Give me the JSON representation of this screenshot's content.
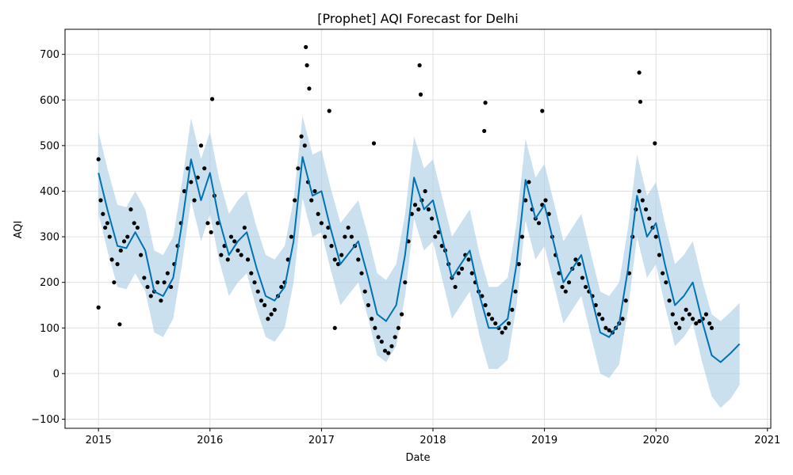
{
  "chart_data": {
    "type": "scatter",
    "title": "[Prophet] AQI Forecast for Delhi",
    "xlabel": "Date",
    "ylabel": "AQI",
    "xlim": [
      2014.7,
      2021.03
    ],
    "ylim": [
      -120,
      755
    ],
    "x_ticks": [
      2015,
      2016,
      2017,
      2018,
      2019,
      2020,
      2021
    ],
    "x_tick_labels": [
      "2015",
      "2016",
      "2017",
      "2018",
      "2019",
      "2020",
      "2021"
    ],
    "y_ticks": [
      -100,
      0,
      100,
      200,
      300,
      400,
      500,
      600,
      700
    ],
    "y_tick_labels": [
      "−100",
      "0",
      "100",
      "200",
      "300",
      "400",
      "500",
      "600",
      "700"
    ],
    "grid": true,
    "colors": {
      "observed": "#000000",
      "forecast": "#0072B2",
      "interval": "#A6CBE3"
    },
    "series": [
      {
        "role": "forecast",
        "x": [
          2015.0,
          2015.08,
          2015.17,
          2015.25,
          2015.33,
          2015.42,
          2015.5,
          2015.58,
          2015.67,
          2015.75,
          2015.83,
          2015.92,
          2016.0,
          2016.08,
          2016.17,
          2016.25,
          2016.33,
          2016.42,
          2016.5,
          2016.58,
          2016.67,
          2016.75,
          2016.83,
          2016.92,
          2017.0,
          2017.08,
          2017.17,
          2017.25,
          2017.33,
          2017.42,
          2017.5,
          2017.58,
          2017.67,
          2017.75,
          2017.83,
          2017.92,
          2018.0,
          2018.08,
          2018.17,
          2018.25,
          2018.33,
          2018.42,
          2018.5,
          2018.58,
          2018.67,
          2018.75,
          2018.83,
          2018.92,
          2019.0,
          2019.08,
          2019.17,
          2019.25,
          2019.33,
          2019.42,
          2019.5,
          2019.58,
          2019.67,
          2019.75,
          2019.83,
          2019.92,
          2020.0,
          2020.08,
          2020.17,
          2020.25,
          2020.33,
          2020.42,
          2020.5,
          2020.58,
          2020.67,
          2020.75
        ],
        "y": [
          440,
          360,
          280,
          275,
          310,
          270,
          180,
          170,
          210,
          330,
          470,
          380,
          440,
          340,
          260,
          290,
          310,
          230,
          170,
          160,
          190,
          290,
          475,
          390,
          400,
          320,
          240,
          265,
          290,
          210,
          130,
          115,
          150,
          260,
          430,
          360,
          380,
          300,
          210,
          240,
          270,
          170,
          100,
          100,
          120,
          240,
          425,
          340,
          370,
          290,
          200,
          230,
          260,
          170,
          90,
          80,
          110,
          230,
          390,
          300,
          330,
          240,
          150,
          170,
          200,
          110,
          40,
          25,
          45,
          65
        ]
      },
      {
        "role": "interval",
        "x": [
          2015.0,
          2015.08,
          2015.17,
          2015.25,
          2015.33,
          2015.42,
          2015.5,
          2015.58,
          2015.67,
          2015.75,
          2015.83,
          2015.92,
          2016.0,
          2016.08,
          2016.17,
          2016.25,
          2016.33,
          2016.42,
          2016.5,
          2016.58,
          2016.67,
          2016.75,
          2016.83,
          2016.92,
          2017.0,
          2017.08,
          2017.17,
          2017.25,
          2017.33,
          2017.42,
          2017.5,
          2017.58,
          2017.67,
          2017.75,
          2017.83,
          2017.92,
          2018.0,
          2018.08,
          2018.17,
          2018.25,
          2018.33,
          2018.42,
          2018.5,
          2018.58,
          2018.67,
          2018.75,
          2018.83,
          2018.92,
          2019.0,
          2019.08,
          2019.17,
          2019.25,
          2019.33,
          2019.42,
          2019.5,
          2019.58,
          2019.67,
          2019.75,
          2019.83,
          2019.92,
          2020.0,
          2020.08,
          2020.17,
          2020.25,
          2020.33,
          2020.42,
          2020.5,
          2020.58,
          2020.67,
          2020.75
        ],
        "upper": [
          530,
          450,
          370,
          365,
          400,
          360,
          270,
          260,
          300,
          420,
          560,
          470,
          530,
          430,
          350,
          380,
          400,
          320,
          260,
          250,
          280,
          380,
          565,
          480,
          490,
          410,
          330,
          355,
          380,
          300,
          220,
          205,
          240,
          350,
          520,
          450,
          470,
          390,
          300,
          330,
          360,
          260,
          190,
          190,
          210,
          330,
          515,
          430,
          460,
          380,
          290,
          320,
          350,
          260,
          180,
          170,
          200,
          320,
          480,
          390,
          420,
          330,
          240,
          260,
          290,
          200,
          130,
          115,
          135,
          155
        ],
        "lower": [
          350,
          270,
          190,
          185,
          220,
          180,
          90,
          80,
          120,
          240,
          380,
          290,
          350,
          250,
          170,
          200,
          220,
          140,
          80,
          70,
          100,
          200,
          385,
          300,
          310,
          230,
          150,
          175,
          200,
          120,
          40,
          25,
          60,
          170,
          340,
          270,
          290,
          210,
          120,
          150,
          180,
          80,
          10,
          10,
          30,
          150,
          335,
          250,
          280,
          200,
          110,
          140,
          170,
          80,
          0,
          -10,
          20,
          140,
          300,
          210,
          240,
          150,
          60,
          80,
          110,
          20,
          -50,
          -75,
          -55,
          -25
        ]
      },
      {
        "role": "observed",
        "x": [
          2015.0,
          2015.02,
          2015.04,
          2015.06,
          2015.08,
          2015.1,
          2015.12,
          2015.14,
          2015.17,
          2015.2,
          2015.23,
          2015.26,
          2015.29,
          2015.32,
          2015.35,
          2015.38,
          2015.41,
          2015.44,
          2015.47,
          2015.5,
          2015.53,
          2015.56,
          2015.59,
          2015.62,
          2015.65,
          2015.68,
          2015.71,
          2015.74,
          2015.77,
          2015.8,
          2015.83,
          2015.86,
          2015.89,
          2015.92,
          2015.95,
          2015.98,
          2016.01,
          2016.04,
          2016.07,
          2016.1,
          2016.13,
          2016.16,
          2016.19,
          2016.22,
          2016.25,
          2016.28,
          2016.31,
          2016.34,
          2016.37,
          2016.4,
          2016.43,
          2016.46,
          2016.49,
          2016.52,
          2016.55,
          2016.58,
          2016.61,
          2016.64,
          2016.67,
          2016.7,
          2016.73,
          2016.76,
          2016.79,
          2016.82,
          2016.85,
          2016.88,
          2016.91,
          2016.94,
          2016.97,
          2017.0,
          2017.03,
          2017.06,
          2017.09,
          2017.12,
          2017.15,
          2017.18,
          2017.21,
          2017.24,
          2017.27,
          2017.3,
          2017.33,
          2017.36,
          2017.39,
          2017.42,
          2017.45,
          2017.48,
          2017.51,
          2017.54,
          2017.57,
          2017.6,
          2017.63,
          2017.66,
          2017.69,
          2017.72,
          2017.75,
          2017.78,
          2017.81,
          2017.84,
          2017.87,
          2017.9,
          2017.93,
          2017.96,
          2017.99,
          2018.02,
          2018.05,
          2018.08,
          2018.11,
          2018.14,
          2018.17,
          2018.2,
          2018.23,
          2018.26,
          2018.29,
          2018.32,
          2018.35,
          2018.38,
          2018.41,
          2018.44,
          2018.47,
          2018.5,
          2018.53,
          2018.56,
          2018.59,
          2018.62,
          2018.65,
          2018.68,
          2018.71,
          2018.74,
          2018.77,
          2018.8,
          2018.83,
          2018.86,
          2018.89,
          2018.92,
          2018.95,
          2018.98,
          2019.01,
          2019.04,
          2019.07,
          2019.1,
          2019.13,
          2019.16,
          2019.19,
          2019.22,
          2019.25,
          2019.28,
          2019.31,
          2019.34,
          2019.37,
          2019.4,
          2019.43,
          2019.46,
          2019.49,
          2019.52,
          2019.55,
          2019.58,
          2019.61,
          2019.64,
          2019.67,
          2019.7,
          2019.73,
          2019.76,
          2019.79,
          2019.82,
          2019.85,
          2019.88,
          2019.91,
          2019.94,
          2019.97,
          2020.0,
          2020.03,
          2020.06,
          2020.09,
          2020.12,
          2020.15,
          2020.18,
          2020.21,
          2020.24,
          2020.27,
          2020.3,
          2020.33,
          2020.36,
          2020.39,
          2020.42,
          2020.45,
          2020.48,
          2020.5
        ],
        "y": [
          470,
          380,
          350,
          320,
          330,
          300,
          250,
          200,
          240,
          270,
          290,
          300,
          360,
          330,
          320,
          260,
          210,
          190,
          170,
          180,
          200,
          160,
          200,
          220,
          190,
          240,
          280,
          330,
          400,
          450,
          420,
          380,
          430,
          500,
          450,
          330,
          310,
          390,
          330,
          260,
          280,
          250,
          300,
          290,
          270,
          260,
          320,
          250,
          220,
          200,
          180,
          160,
          150,
          120,
          130,
          140,
          170,
          190,
          200,
          250,
          300,
          380,
          450,
          520,
          500,
          420,
          380,
          400,
          350,
          330,
          300,
          320,
          280,
          250,
          240,
          260,
          300,
          320,
          300,
          280,
          250,
          220,
          180,
          150,
          120,
          100,
          80,
          70,
          50,
          45,
          60,
          80,
          100,
          130,
          200,
          290,
          350,
          370,
          360,
          380,
          400,
          360,
          340,
          300,
          310,
          280,
          270,
          240,
          210,
          190,
          220,
          230,
          260,
          250,
          220,
          200,
          180,
          170,
          150,
          130,
          120,
          110,
          100,
          90,
          100,
          110,
          140,
          180,
          240,
          300,
          380,
          420,
          360,
          340,
          330,
          370,
          380,
          350,
          300,
          260,
          220,
          190,
          180,
          200,
          230,
          250,
          240,
          210,
          190,
          180,
          170,
          150,
          130,
          120,
          100,
          95,
          90,
          100,
          110,
          120,
          160,
          220,
          300,
          360,
          400,
          380,
          360,
          340,
          320,
          300,
          260,
          220,
          200,
          160,
          130,
          110,
          100,
          120,
          140,
          130,
          120,
          110,
          115,
          120,
          130,
          110,
          100
        ],
        "outliers_x": [
          2015.0,
          2015.19,
          2016.02,
          2016.86,
          2016.87,
          2016.89,
          2017.07,
          2017.12,
          2017.47,
          2017.88,
          2017.89,
          2018.47,
          2018.46,
          2018.98,
          2019.85,
          2019.86,
          2019.99
        ],
        "outliers_y": [
          145,
          108,
          602,
          716,
          676,
          625,
          576,
          100,
          505,
          676,
          612,
          594,
          532,
          576,
          660,
          596,
          505
        ]
      }
    ]
  }
}
